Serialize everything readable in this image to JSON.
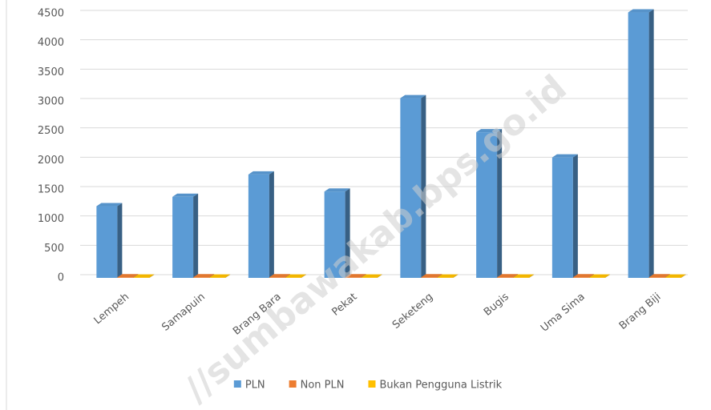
{
  "chart_data": {
    "type": "bar3d",
    "categories": [
      "Lempeh",
      "Samapuin",
      "Brang Bara",
      "Pekat",
      "Seketeng",
      "Bugis",
      "Uma Sima",
      "Brang Biji"
    ],
    "series": [
      {
        "name": "PLN",
        "color": "#5b9bd5",
        "values": [
          1220,
          1380,
          1760,
          1470,
          3060,
          2480,
          2050,
          4520
        ]
      },
      {
        "name": "Non PLN",
        "color": "#ed7d31",
        "values": [
          10,
          10,
          10,
          10,
          10,
          10,
          10,
          10
        ]
      },
      {
        "name": "Bukan Pengguna Listrik",
        "color": "#ffc000",
        "values": [
          5,
          5,
          5,
          5,
          5,
          5,
          5,
          5
        ]
      }
    ],
    "ylim": [
      0,
      4500
    ],
    "yticks": [
      0,
      500,
      1000,
      1500,
      2000,
      2500,
      3000,
      3500,
      4000,
      4500
    ],
    "grid": true,
    "legend": "bottom",
    "watermark": "//sumbawakab.bps.go.id"
  }
}
